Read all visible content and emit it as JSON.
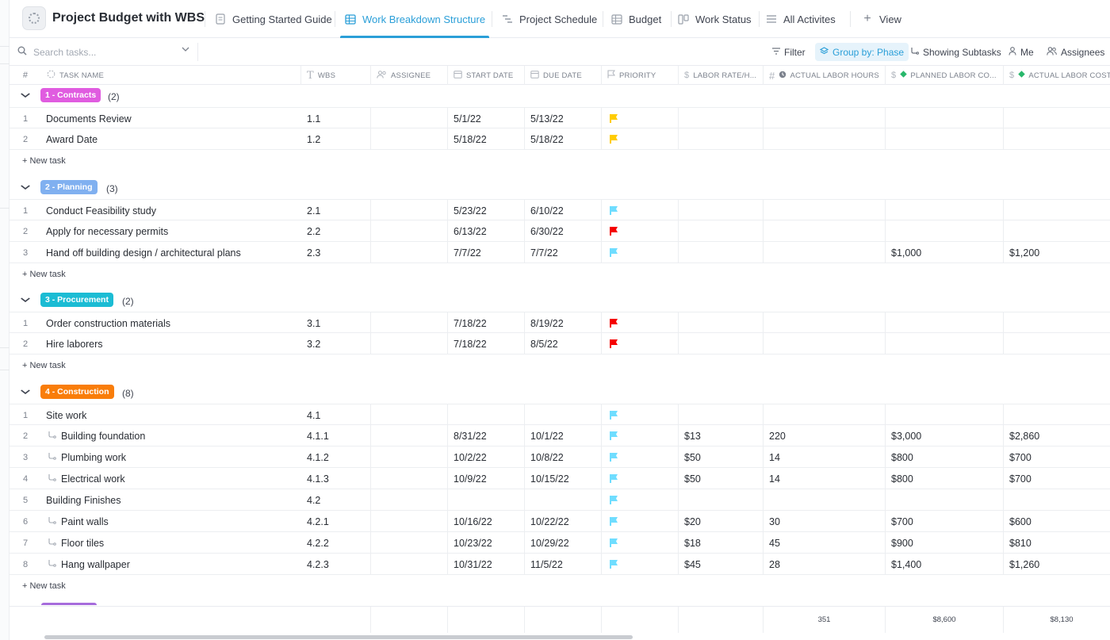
{
  "header": {
    "title": "Project Budget with WBS",
    "tabs": [
      {
        "label": "Getting Started Guide"
      },
      {
        "label": "Work Breakdown Structure"
      },
      {
        "label": "Project Schedule"
      },
      {
        "label": "Budget"
      },
      {
        "label": "Work Status"
      },
      {
        "label": "All Activites"
      }
    ],
    "add_view_label": "View"
  },
  "toolbar": {
    "search_placeholder": "Search tasks...",
    "filter_label": "Filter",
    "group_label": "Group by: Phase",
    "subtasks_label": "Showing Subtasks",
    "me_label": "Me",
    "assignees_label": "Assignees"
  },
  "columns": {
    "hash": "#",
    "task_name": "TASK NAME",
    "wbs": "WBS",
    "assignee": "ASSIGNEE",
    "start_date": "START DATE",
    "due_date": "DUE DATE",
    "priority": "PRIORITY",
    "labor_rate": "LABOR RATE/H...",
    "actual_labor_hours": "ACTUAL LABOR HOURS",
    "planned_labor_cost": "PLANNED LABOR CO...",
    "actual_labor_cost": "ACTUAL LABOR COST"
  },
  "new_task_label": "+ New task",
  "colors": {
    "accent": "#2b9fd8",
    "priority_urgent": "#f50000",
    "priority_high": "#ffcc00",
    "priority_normal": "#6fddff",
    "contracts": "#e05ce0",
    "planning": "#80b0f0",
    "procurement": "#1bbcd4",
    "construction": "#f97d0a"
  },
  "groups": [
    {
      "name": "1 - Contracts",
      "count": "(2)",
      "color": "#e05ce0",
      "rows": [
        {
          "num": "1",
          "name": "Documents Review",
          "wbs": "1.1",
          "start": "5/1/22",
          "due": "5/13/22",
          "priority": "high",
          "rate": "",
          "hours": "",
          "planned": "",
          "actual": ""
        },
        {
          "num": "2",
          "name": "Award Date",
          "wbs": "1.2",
          "start": "5/18/22",
          "due": "5/18/22",
          "priority": "high",
          "rate": "",
          "hours": "",
          "planned": "",
          "actual": ""
        }
      ]
    },
    {
      "name": "2 - Planning",
      "count": "(3)",
      "color": "#80b0f0",
      "rows": [
        {
          "num": "1",
          "name": "Conduct Feasibility study",
          "wbs": "2.1",
          "start": "5/23/22",
          "due": "6/10/22",
          "priority": "normal",
          "rate": "",
          "hours": "",
          "planned": "",
          "actual": ""
        },
        {
          "num": "2",
          "name": "Apply for necessary permits",
          "wbs": "2.2",
          "start": "6/13/22",
          "due": "6/30/22",
          "priority": "urgent",
          "rate": "",
          "hours": "",
          "planned": "",
          "actual": ""
        },
        {
          "num": "3",
          "name": "Hand off building design / architectural plans",
          "wbs": "2.3",
          "start": "7/7/22",
          "due": "7/7/22",
          "priority": "normal",
          "rate": "",
          "hours": "",
          "planned": "$1,000",
          "actual": "$1,200"
        }
      ]
    },
    {
      "name": "3 - Procurement",
      "count": "(2)",
      "color": "#1bbcd4",
      "rows": [
        {
          "num": "1",
          "name": "Order construction materials",
          "wbs": "3.1",
          "start": "7/18/22",
          "due": "8/19/22",
          "priority": "urgent",
          "rate": "",
          "hours": "",
          "planned": "",
          "actual": ""
        },
        {
          "num": "2",
          "name": "Hire laborers",
          "wbs": "3.2",
          "start": "7/18/22",
          "due": "8/5/22",
          "priority": "urgent",
          "rate": "",
          "hours": "",
          "planned": "",
          "actual": ""
        }
      ]
    },
    {
      "name": "4 - Construction",
      "count": "(8)",
      "color": "#f97d0a",
      "rows": [
        {
          "num": "1",
          "name": "Site work",
          "wbs": "4.1",
          "start": "",
          "due": "",
          "priority": "normal",
          "rate": "",
          "hours": "",
          "planned": "",
          "actual": ""
        },
        {
          "num": "2",
          "name": "Building foundation",
          "sub": true,
          "wbs": "4.1.1",
          "start": "8/31/22",
          "due": "10/1/22",
          "priority": "normal",
          "rate": "$13",
          "hours": "220",
          "planned": "$3,000",
          "actual": "$2,860"
        },
        {
          "num": "3",
          "name": "Plumbing work",
          "sub": true,
          "wbs": "4.1.2",
          "start": "10/2/22",
          "due": "10/8/22",
          "priority": "normal",
          "rate": "$50",
          "hours": "14",
          "planned": "$800",
          "actual": "$700"
        },
        {
          "num": "4",
          "name": "Electrical work",
          "sub": true,
          "wbs": "4.1.3",
          "start": "10/9/22",
          "due": "10/15/22",
          "priority": "normal",
          "rate": "$50",
          "hours": "14",
          "planned": "$800",
          "actual": "$700"
        },
        {
          "num": "5",
          "name": "Building Finishes",
          "wbs": "4.2",
          "start": "",
          "due": "",
          "priority": "normal",
          "rate": "",
          "hours": "",
          "planned": "",
          "actual": ""
        },
        {
          "num": "6",
          "name": "Paint walls",
          "sub": true,
          "wbs": "4.2.1",
          "start": "10/16/22",
          "due": "10/22/22",
          "priority": "normal",
          "rate": "$20",
          "hours": "30",
          "planned": "$700",
          "actual": "$600"
        },
        {
          "num": "7",
          "name": "Floor tiles",
          "sub": true,
          "wbs": "4.2.2",
          "start": "10/23/22",
          "due": "10/29/22",
          "priority": "normal",
          "rate": "$18",
          "hours": "45",
          "planned": "$900",
          "actual": "$810"
        },
        {
          "num": "8",
          "name": "Hang wallpaper",
          "sub": true,
          "wbs": "4.2.3",
          "start": "10/31/22",
          "due": "11/5/22",
          "priority": "normal",
          "rate": "$45",
          "hours": "28",
          "planned": "$1,400",
          "actual": "$1,260"
        }
      ]
    }
  ],
  "totals": {
    "hours": "351",
    "planned": "$8,600",
    "actual": "$8,130"
  }
}
